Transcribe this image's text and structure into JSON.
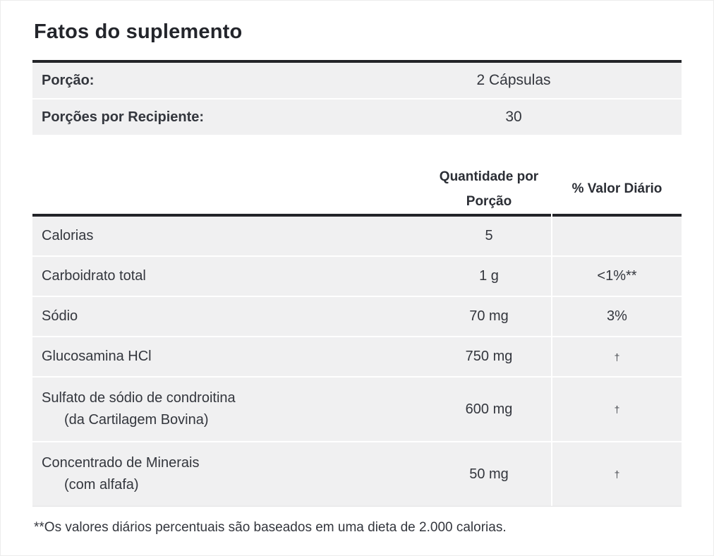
{
  "page": {
    "title": "Fatos do suplemento"
  },
  "serving_info": {
    "rows": [
      {
        "label": "Porção:",
        "value": "2 Cápsulas"
      },
      {
        "label": "Porções por Recipiente:",
        "value": "30"
      }
    ]
  },
  "facts_table": {
    "headers": {
      "amount": "Quantidade por Porção",
      "dv": "% Valor Diário"
    },
    "rows": [
      {
        "name": "Calorias",
        "amount": "5",
        "dv": ""
      },
      {
        "name": "Carboidrato total",
        "amount": "1 g",
        "dv": "<1%**"
      },
      {
        "name": "Sódio",
        "amount": "70 mg",
        "dv": "3%"
      },
      {
        "name": "Glucosamina HCl",
        "amount": "750 mg",
        "dv": "†"
      },
      {
        "name": "Sulfato de sódio de condroitina",
        "name2": "(da Cartilagem Bovina)",
        "amount": "600 mg",
        "dv": "†"
      },
      {
        "name": "Concentrado de Minerais",
        "name2": "(com alfafa)",
        "amount": "50 mg",
        "dv": "†"
      }
    ],
    "footnote": "**Os valores diários percentuais são baseados em uma dieta de 2.000 calorias."
  },
  "colors": {
    "heavy_border": "#232428",
    "row_background": "#f0f0f1",
    "text": "#33363d"
  }
}
